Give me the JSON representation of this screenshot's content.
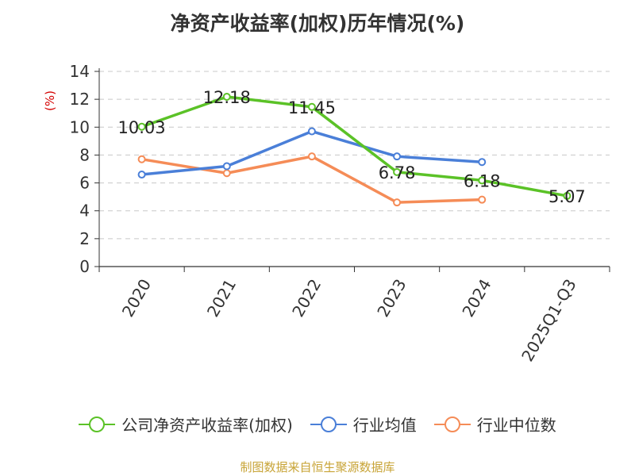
{
  "chart_data": {
    "type": "line",
    "title": "净资产收益率(加权)历年情况(%)",
    "ylabel": "(%)",
    "xlabel": "",
    "categories": [
      "2020",
      "2021",
      "2022",
      "2023",
      "2024",
      "2025Q1-Q3"
    ],
    "ylim": [
      0,
      14
    ],
    "yticks": [
      0,
      2,
      4,
      6,
      8,
      10,
      12,
      14
    ],
    "grid": true,
    "legend_position": "bottom",
    "series": [
      {
        "name": "公司净资产收益率(加权)",
        "color": "#5bc227",
        "values": [
          10.03,
          12.18,
          11.45,
          6.78,
          6.18,
          5.07
        ],
        "data_labels": [
          "10.03",
          "12.18",
          "11.45",
          "6.78",
          "6.18",
          "5.07"
        ]
      },
      {
        "name": "行业均值",
        "color": "#4a7fd8",
        "values": [
          6.6,
          7.2,
          9.7,
          7.9,
          7.5,
          null
        ]
      },
      {
        "name": "行业中位数",
        "color": "#f58c57",
        "values": [
          7.7,
          6.7,
          7.9,
          4.6,
          4.8,
          null
        ]
      }
    ]
  },
  "footer": {
    "source": "制图数据来自恒生聚源数据库"
  }
}
